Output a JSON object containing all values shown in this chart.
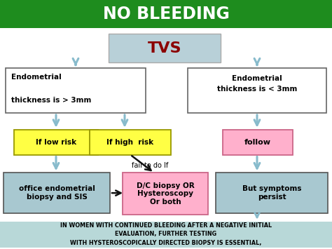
{
  "title": "NO BLEEDING",
  "title_color": "#ffffff",
  "title_bg": "#1e8c1e",
  "bg_color": "#ffffff",
  "tvs_text": "TVS",
  "tvs_color": "#8b0000",
  "tvs_box_color": "#b8d0d8",
  "left_box1_text": "Endometrial\n\nthickness is > 3mm",
  "left_box1_color": "#ffffff",
  "low_risk_text": "If low risk",
  "low_risk_color": "#ffff44",
  "high_risk_text": "If high  risk",
  "high_risk_color": "#ffff44",
  "fail_text": "fail to do If",
  "office_text": "office endometrial\nbiopsy and SIS",
  "office_color": "#a8c8d0",
  "dc_text": "D/C biopsy OR\nHysteroscopy\nOr both",
  "dc_color": "#ffb0cc",
  "right_box1_text": "Endometrial\nthickness is < 3mm",
  "right_box1_color": "#ffffff",
  "follow_text": "follow",
  "follow_color": "#ffb0cc",
  "persist_text": "But symptoms\npersist",
  "persist_color": "#a8c8d0",
  "footer_text": "IN WOMEN WITH CONTINUED BLEEDING AFTER A NEGATIVE INITIAL\nEVALUATION, FURTHER TESTING\nWITH HYSTEROSCOPICALLY DIRECTED BIOPSY IS ESSENTIAL,",
  "footer_bg": "#b8d8d8",
  "footer_color": "#000000",
  "arrow_color": "#88bbcc",
  "black_arrow": "#111111"
}
